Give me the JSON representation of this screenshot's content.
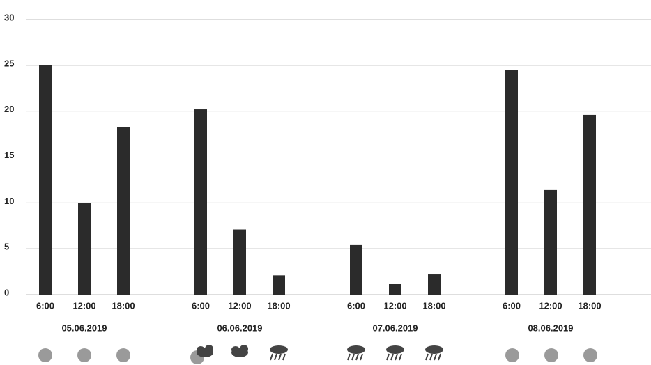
{
  "chart_data": {
    "type": "bar",
    "categories": [
      "6:00",
      "12:00",
      "18:00",
      "6:00",
      "12:00",
      "18:00",
      "6:00",
      "12:00",
      "18:00",
      "6:00",
      "12:00",
      "18:00"
    ],
    "groups": [
      "05.06.2019",
      "06.06.2019",
      "07.06.2019",
      "08.06.2019"
    ],
    "values": [
      25,
      10,
      18.3,
      20.2,
      7.1,
      2.1,
      5.4,
      1.2,
      2.2,
      24.5,
      11.4,
      19.6
    ],
    "color": "#2b2b2b",
    "ylim": [
      0,
      30
    ],
    "yticks": [
      0,
      5,
      10,
      15,
      20,
      25,
      30
    ],
    "grid": true
  }
}
